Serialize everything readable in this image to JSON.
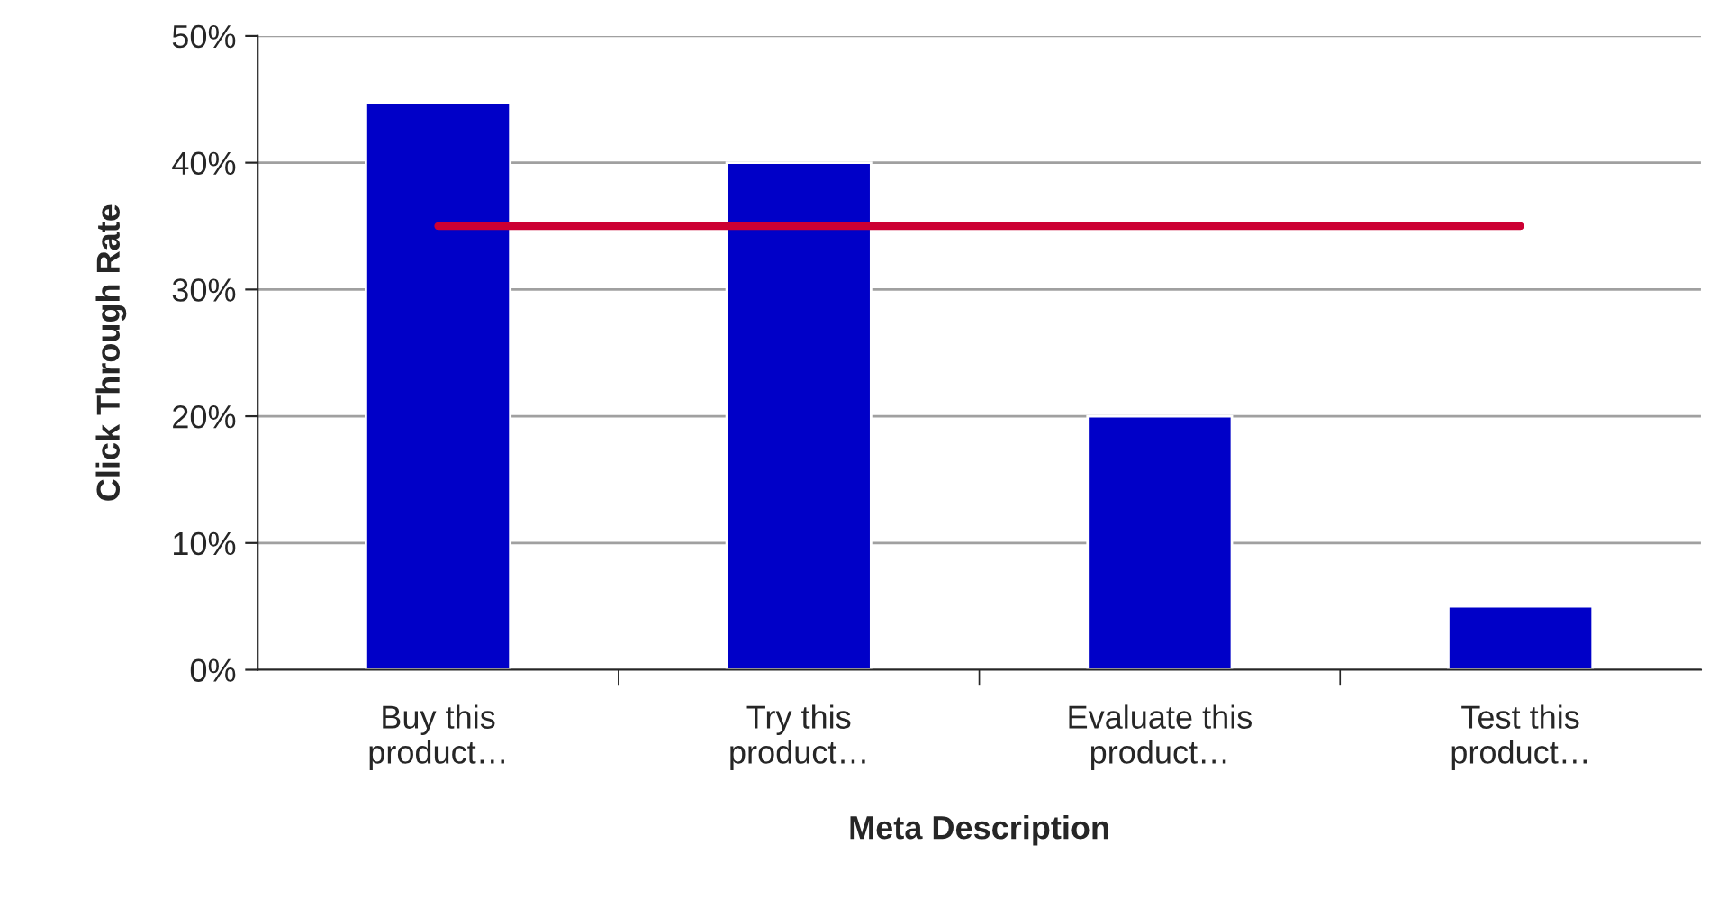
{
  "chart_data": {
    "type": "bar",
    "xlabel": "Meta Description",
    "ylabel": "Click Through Rate",
    "categories": [
      "Buy this\nproduct…",
      "Try this\nproduct…",
      "Evaluate this\nproduct…",
      "Test this\nproduct…"
    ],
    "series": [
      {
        "color": "#0000c8",
        "values": [
          44.7,
          40,
          20,
          5
        ]
      },
      {
        "type": "line",
        "color": "#cc0033",
        "values": [
          35,
          35,
          35,
          35
        ]
      }
    ],
    "ylim": [
      0,
      50
    ],
    "yticks": [
      {
        "value": 0,
        "label": "0%"
      },
      {
        "value": 10,
        "label": "10%"
      },
      {
        "value": 20,
        "label": "20%"
      },
      {
        "value": 30,
        "label": "30%"
      },
      {
        "value": 40,
        "label": "40%"
      },
      {
        "value": 50,
        "label": "50%"
      }
    ],
    "grid": "y",
    "legend": false
  }
}
